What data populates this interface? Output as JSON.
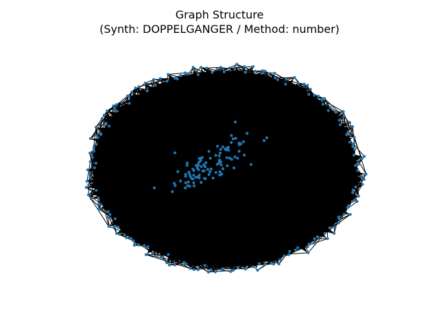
{
  "figure": {
    "title_line1": "Graph Structure",
    "title_line2": "(Synth: DOPPELGANGER / Method: number)"
  },
  "graph": {
    "node_color": "#1f77b4",
    "edge_color": "#000000",
    "directed": true
  }
}
